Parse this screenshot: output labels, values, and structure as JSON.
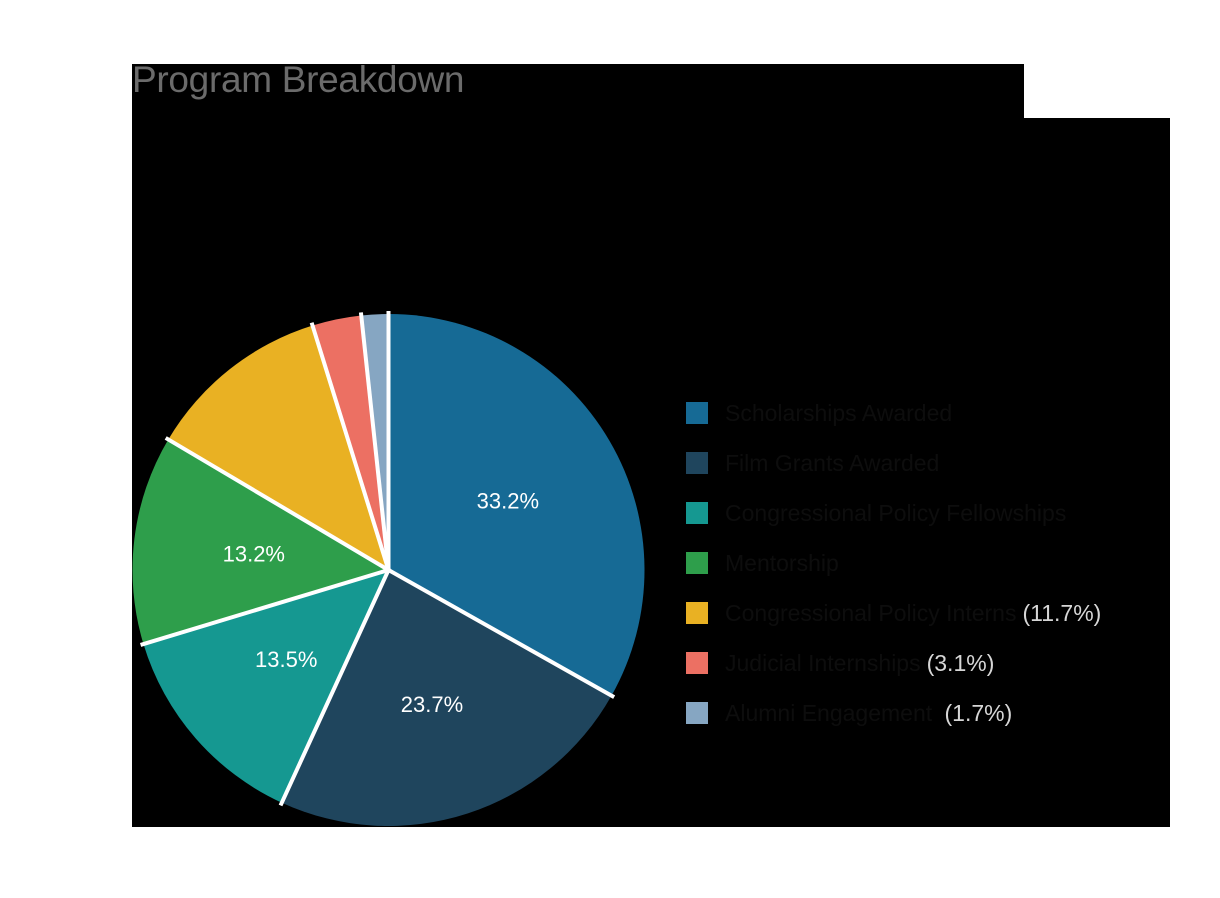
{
  "chart_data": {
    "type": "pie",
    "title": "Program Breakdown",
    "start_angle": "12 o'clock, clockwise",
    "categories": [
      "Scholarships Awarded",
      "Film Grants Awarded",
      "Congressional Policy Fellowships",
      "Mentorship",
      "Congressional Policy Interns",
      "Judicial Internships",
      "Alumni Engagement"
    ],
    "values": [
      33.2,
      23.7,
      13.5,
      13.2,
      11.7,
      3.1,
      1.7
    ],
    "colors": [
      "#166a95",
      "#1f455d",
      "#159891",
      "#2e9e4b",
      "#e9b123",
      "#ec7063",
      "#86a6c2"
    ],
    "slice_labels": [
      "33.2%",
      "23.7%",
      "13.5%",
      "13.2%",
      "",
      "",
      ""
    ],
    "legend_position": "right",
    "legend": [
      {
        "label": "Scholarships Awarded",
        "pct": ""
      },
      {
        "label": "Film Grants Awarded",
        "pct": ""
      },
      {
        "label": "Congressional Policy Fellowships",
        "pct": ""
      },
      {
        "label": "Mentorship",
        "pct": ""
      },
      {
        "label": "Congressional Policy Interns",
        "pct": "(11.7%)"
      },
      {
        "label": "Judicial Internships",
        "pct": "(3.1%)"
      },
      {
        "label": "Alumni Engagement",
        "pct": " (1.7%)"
      }
    ]
  },
  "header": {
    "title": "Program Breakdown"
  }
}
